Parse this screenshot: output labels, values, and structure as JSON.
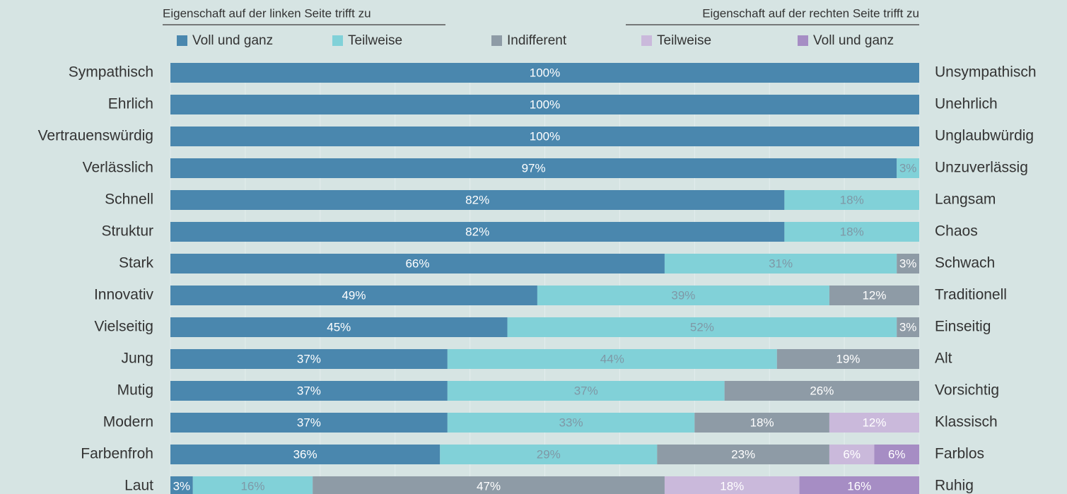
{
  "chart_data": {
    "type": "stacked_bar_horizontal_100",
    "left_header": "Eigenschaft auf der linken Seite trifft zu",
    "right_header": "Eigenschaft auf der rechten Seite trifft zu",
    "categories": [
      "Sympathisch",
      "Ehrlich",
      "Vertrauenswürdig",
      "Verlässlich",
      "Schnell",
      "Struktur",
      "Stark",
      "Innovativ",
      "Vielseitig",
      "Jung",
      "Mutig",
      "Modern",
      "Farbenfroh",
      "Laut"
    ],
    "right_categories": [
      "Unsympathisch",
      "Unehrlich",
      "Unglaubwürdig",
      "Unzuverlässig",
      "Langsam",
      "Chaos",
      "Schwach",
      "Traditionell",
      "Einseitig",
      "Alt",
      "Vorsichtig",
      "Klassisch",
      "Farblos",
      "Ruhig"
    ],
    "series": [
      {
        "name": "Voll und ganz",
        "color": "#4a87ae",
        "label_color": "#ffffff",
        "values": [
          100,
          100,
          100,
          97,
          82,
          82,
          66,
          49,
          45,
          37,
          37,
          37,
          36,
          3
        ]
      },
      {
        "name": "Teilweise",
        "color": "#81d1d8",
        "label_color": "#7f98a6",
        "values": [
          null,
          null,
          null,
          3,
          18,
          18,
          31,
          39,
          52,
          44,
          37,
          33,
          29,
          16
        ]
      },
      {
        "name": "Indifferent",
        "color": "#8e9ba6",
        "label_color": "#ffffff",
        "values": [
          null,
          null,
          null,
          null,
          null,
          null,
          3,
          12,
          3,
          19,
          26,
          18,
          23,
          47
        ]
      },
      {
        "name": "Teilweise",
        "color": "#cab9db",
        "label_color": "#ffffff",
        "values": [
          null,
          null,
          null,
          null,
          null,
          null,
          null,
          null,
          null,
          null,
          null,
          12,
          6,
          18
        ]
      },
      {
        "name": "Voll und ganz",
        "color": "#a68dc4",
        "label_color": "#ffffff",
        "values": [
          null,
          null,
          null,
          null,
          null,
          null,
          null,
          null,
          null,
          null,
          null,
          null,
          6,
          16
        ]
      }
    ],
    "value_labels": [
      [
        "100%",
        "100%",
        "100%",
        "97%",
        "82%",
        "82%",
        "66%",
        "49%",
        "45%",
        "37%",
        "37%",
        "37%",
        "36%",
        "3%"
      ],
      [
        null,
        null,
        null,
        "3%",
        "18%",
        "18%",
        "31%",
        "39%",
        "52%",
        "44%",
        "37%",
        "33%",
        "29%",
        "16%"
      ],
      [
        null,
        null,
        null,
        null,
        null,
        null,
        "3%",
        "12%",
        "3%",
        "19%",
        "26%",
        "18%",
        "23%",
        "47%"
      ],
      [
        null,
        null,
        null,
        null,
        null,
        null,
        null,
        null,
        null,
        null,
        null,
        "12%",
        "6%",
        "18%"
      ],
      [
        null,
        null,
        null,
        null,
        null,
        null,
        null,
        null,
        null,
        null,
        null,
        null,
        "6%",
        "16%"
      ]
    ],
    "xlim": [
      0,
      100
    ],
    "xticks": [
      0,
      10,
      20,
      30,
      40,
      50,
      60,
      70,
      80,
      90,
      100
    ],
    "grid": true
  }
}
